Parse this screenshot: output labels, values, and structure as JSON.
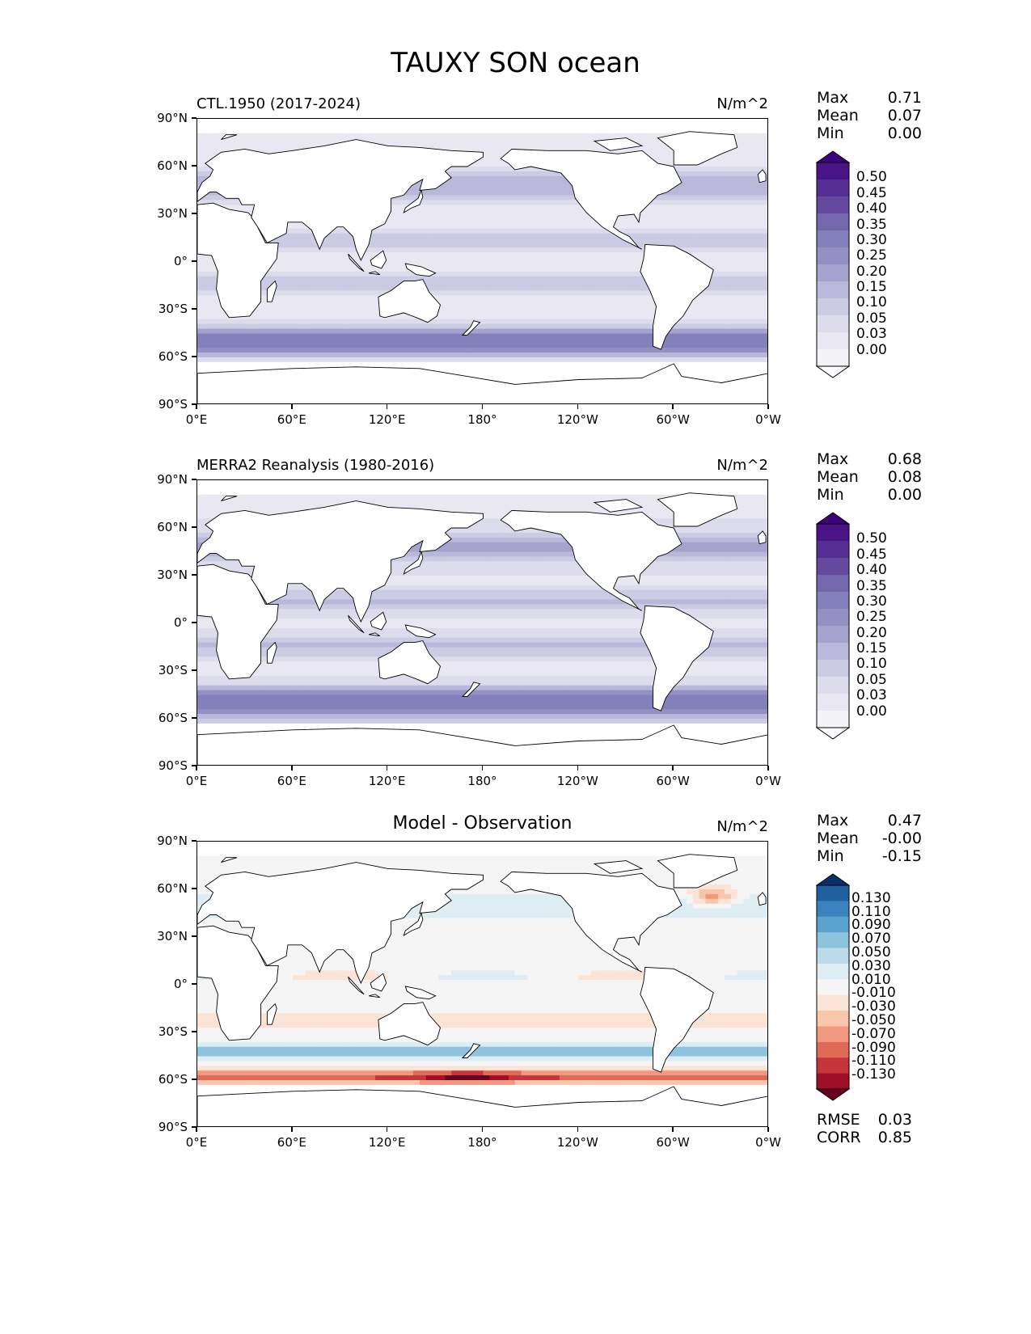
{
  "title": "TAUXY SON ocean",
  "panels": [
    {
      "id": "ctl",
      "title": "CTL.1950 (2017-2024)",
      "units": "N/m^2",
      "stats": [
        {
          "label": "Max",
          "value": "0.71"
        },
        {
          "label": "Mean",
          "value": "0.07"
        },
        {
          "label": "Min",
          "value": "0.00"
        }
      ],
      "colorbar_labels": [
        "0.50",
        "0.45",
        "0.40",
        "0.35",
        "0.30",
        "0.25",
        "0.20",
        "0.15",
        "0.10",
        "0.05",
        "0.03",
        "0.00"
      ],
      "colormap": "Purples"
    },
    {
      "id": "obs",
      "title": "MERRA2 Reanalysis (1980-2016)",
      "units": "N/m^2",
      "stats": [
        {
          "label": "Max",
          "value": "0.68"
        },
        {
          "label": "Mean",
          "value": "0.08"
        },
        {
          "label": "Min",
          "value": "0.00"
        }
      ],
      "colorbar_labels": [
        "0.50",
        "0.45",
        "0.40",
        "0.35",
        "0.30",
        "0.25",
        "0.20",
        "0.15",
        "0.10",
        "0.05",
        "0.03",
        "0.00"
      ],
      "colormap": "Purples"
    },
    {
      "id": "diff",
      "title": "Model - Observation",
      "units": "N/m^2",
      "stats": [
        {
          "label": "Max",
          "value": "0.47"
        },
        {
          "label": "Mean",
          "value": "-0.00"
        },
        {
          "label": "Min",
          "value": "-0.15"
        }
      ],
      "colorbar_labels": [
        "0.130",
        "0.110",
        "0.090",
        "0.070",
        "0.050",
        "0.030",
        "0.010",
        "-0.010",
        "-0.030",
        "-0.050",
        "-0.070",
        "-0.090",
        "-0.110",
        "-0.130"
      ],
      "colormap": "RdBu",
      "metrics": [
        {
          "label": "RMSE",
          "value": "0.03"
        },
        {
          "label": "CORR",
          "value": "0.85"
        }
      ]
    }
  ],
  "axes": {
    "lat_ticks": [
      "90°N",
      "60°N",
      "30°N",
      "0°",
      "30°S",
      "60°S",
      "90°S"
    ],
    "lon_ticks": [
      "0°E",
      "60°E",
      "120°E",
      "180°",
      "120°W",
      "60°W",
      "0°W"
    ]
  },
  "colors": {
    "purples": [
      "#fcfbfd",
      "#f4f3f8",
      "#e9e8f2",
      "#dcdcec",
      "#cbcbe3",
      "#b9b8da",
      "#a5a2cf",
      "#9490c4",
      "#8480bb",
      "#7467ad",
      "#65499f",
      "#562d92",
      "#4a1486",
      "#3f007d"
    ],
    "rdbu_neg_to_pos": [
      "#67001f",
      "#9e0e26",
      "#c5363a",
      "#df6b56",
      "#f1997e",
      "#f9c6ab",
      "#fbe4d6",
      "#f5f5f5",
      "#deecf4",
      "#bcdaea",
      "#8ec3dd",
      "#5ba3cf",
      "#3a82bb",
      "#1f60a1",
      "#08306b"
    ],
    "land": "#ffffff",
    "coast": "#000000"
  }
}
